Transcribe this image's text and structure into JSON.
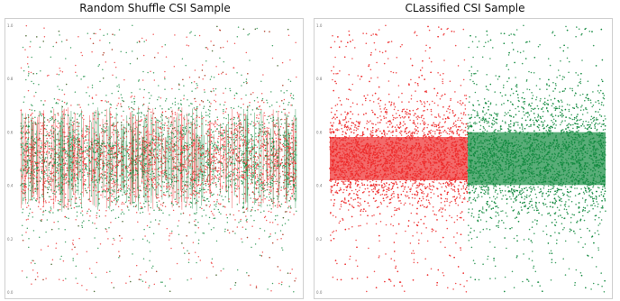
{
  "chart_data": [
    {
      "type": "scatter",
      "title": "Random Shuffle CSI Sample",
      "xlabel": "",
      "ylabel": "",
      "y_ticks": [
        "1.0",
        "0.8",
        "0.6",
        "0.4",
        "0.2",
        "0.0"
      ],
      "ylim": [
        0.0,
        1.0
      ],
      "grid": false,
      "legend": "none",
      "series": [
        {
          "label_color": "red",
          "color": "#ee2b2b",
          "x_range": [
            0,
            1
          ],
          "y_center": 0.5,
          "y_spread": 0.09,
          "arrangement": "shuffled"
        },
        {
          "label_color": "green",
          "color": "#128a3e",
          "x_range": [
            0,
            1
          ],
          "y_center": 0.5,
          "y_spread": 0.11,
          "arrangement": "shuffled"
        }
      ]
    },
    {
      "type": "scatter",
      "title": "CLassified CSI Sample",
      "xlabel": "",
      "ylabel": "",
      "y_ticks": [
        "1.0",
        "0.8",
        "0.6",
        "0.4",
        "0.2",
        "0.0"
      ],
      "ylim": [
        0.0,
        1.0
      ],
      "grid": false,
      "legend": "none",
      "series": [
        {
          "label_color": "red",
          "color": "#ee2b2b",
          "x_range": [
            0,
            0.5
          ],
          "y_center": 0.5,
          "y_spread": 0.09,
          "arrangement": "classified"
        },
        {
          "label_color": "green",
          "color": "#128a3e",
          "x_range": [
            0.5,
            1
          ],
          "y_center": 0.5,
          "y_spread": 0.11,
          "arrangement": "classified"
        }
      ]
    }
  ]
}
